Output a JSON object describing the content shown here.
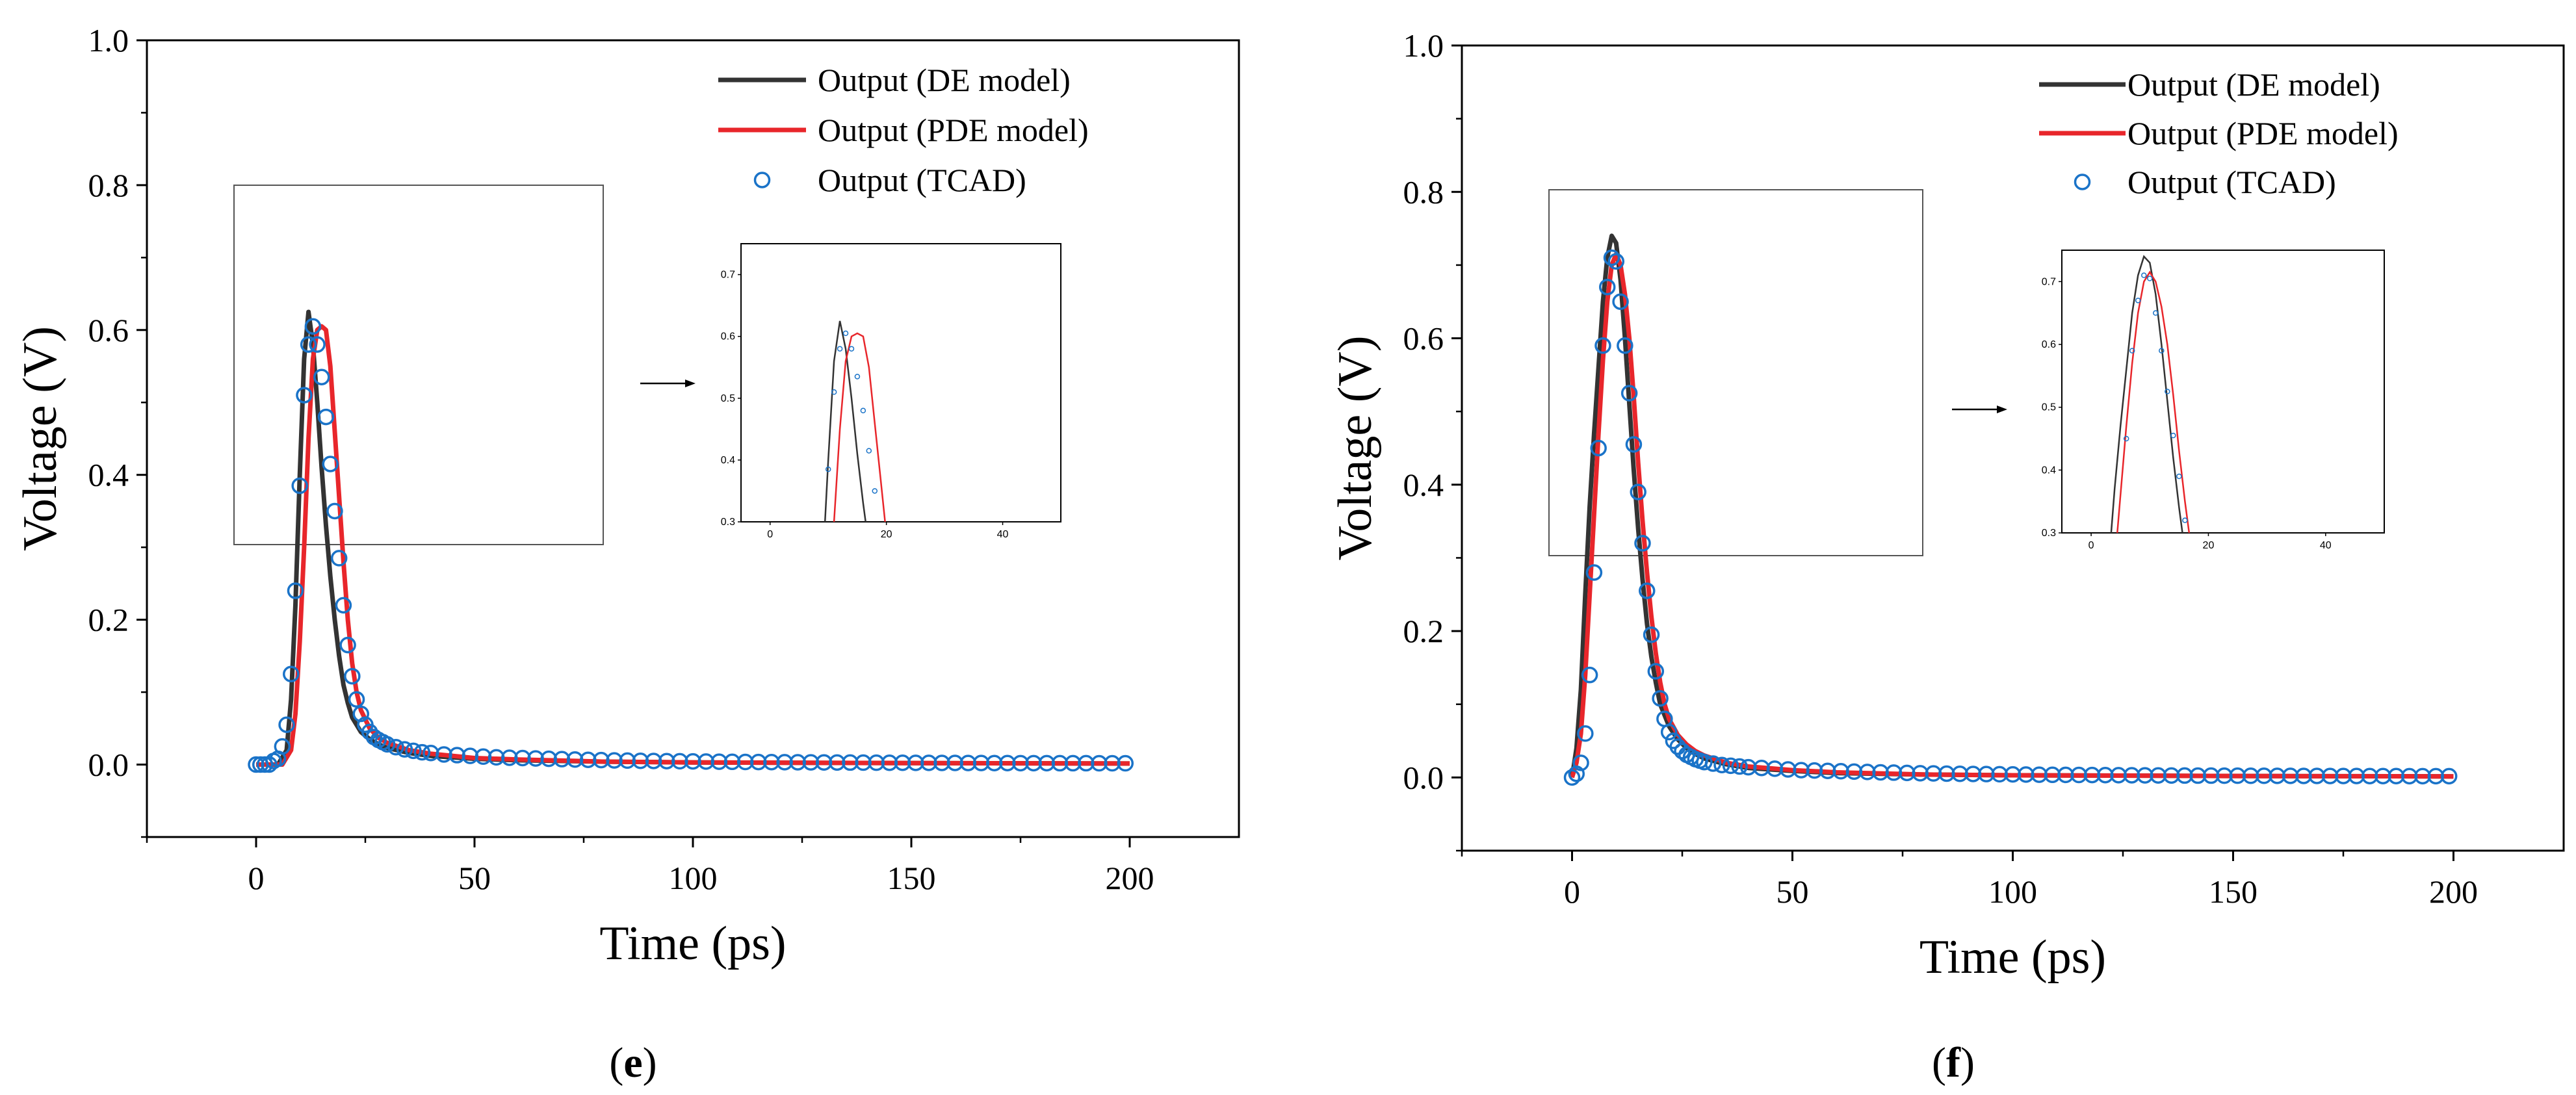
{
  "chart_data": [
    {
      "type": "line",
      "panel_label": "e",
      "xlabel": "Time (ps)",
      "ylabel": "Voltage (V)",
      "xlim": [
        -25,
        225
      ],
      "ylim": [
        -0.1,
        1.0
      ],
      "xticks": [
        0,
        50,
        100,
        150,
        200
      ],
      "yticks": [
        0.0,
        0.2,
        0.4,
        0.6,
        0.8,
        1.0
      ],
      "xtick_labels": [
        "0",
        "50",
        "100",
        "150",
        "200"
      ],
      "ytick_labels": [
        "0.0",
        "0.2",
        "0.4",
        "0.6",
        "0.8",
        "1.0"
      ],
      "legend_position": "top-right",
      "series": [
        {
          "name": "Output (DE model)",
          "color": "#333333",
          "kind": "line",
          "x": [
            0,
            5,
            7,
            8,
            9,
            10,
            11,
            12,
            13,
            14,
            15,
            16,
            17,
            18,
            19,
            20,
            21,
            22,
            24,
            26,
            28,
            30,
            35,
            40,
            50,
            60,
            80,
            100,
            150,
            200
          ],
          "y": [
            0.0,
            0.0,
            0.02,
            0.09,
            0.22,
            0.4,
            0.56,
            0.625,
            0.58,
            0.5,
            0.41,
            0.33,
            0.26,
            0.2,
            0.15,
            0.11,
            0.085,
            0.065,
            0.045,
            0.035,
            0.028,
            0.023,
            0.016,
            0.012,
            0.008,
            0.006,
            0.004,
            0.003,
            0.002,
            0.0015
          ]
        },
        {
          "name": "Output (PDE model)",
          "color": "#e8262b",
          "kind": "line",
          "x": [
            0,
            6,
            8,
            9,
            10,
            11,
            12,
            13,
            14,
            15,
            16,
            17,
            18,
            19,
            20,
            21,
            22,
            23,
            24,
            26,
            28,
            30,
            35,
            40,
            50,
            60,
            80,
            100,
            150,
            200
          ],
          "y": [
            0.0,
            0.0,
            0.02,
            0.07,
            0.17,
            0.3,
            0.45,
            0.56,
            0.6,
            0.605,
            0.6,
            0.55,
            0.46,
            0.37,
            0.28,
            0.2,
            0.14,
            0.1,
            0.075,
            0.05,
            0.037,
            0.03,
            0.02,
            0.015,
            0.009,
            0.007,
            0.004,
            0.003,
            0.002,
            0.0015
          ]
        },
        {
          "name": "Output (TCAD)",
          "color": "#1a73c8",
          "kind": "markers",
          "x": [
            0,
            1,
            2,
            3,
            4,
            5,
            6,
            7,
            8,
            9,
            10,
            11,
            12,
            13,
            14,
            15,
            16,
            17,
            18,
            19,
            20,
            21,
            22,
            23,
            24,
            25,
            26,
            27,
            28,
            29,
            30,
            32,
            34,
            36,
            38,
            40,
            43,
            46,
            49,
            52,
            55,
            58,
            61,
            64,
            67,
            70,
            73,
            76,
            79,
            82,
            85,
            88,
            91,
            94,
            97,
            100,
            103,
            106,
            109,
            112,
            115,
            118,
            121,
            124,
            127,
            130,
            133,
            136,
            139,
            142,
            145,
            148,
            151,
            154,
            157,
            160,
            163,
            166,
            169,
            172,
            175,
            178,
            181,
            184,
            187,
            190,
            193,
            196,
            199
          ],
          "y": [
            0.0,
            0.0,
            0.0,
            0.0,
            0.005,
            0.008,
            0.025,
            0.055,
            0.125,
            0.24,
            0.385,
            0.51,
            0.58,
            0.605,
            0.58,
            0.535,
            0.48,
            0.415,
            0.35,
            0.285,
            0.22,
            0.165,
            0.122,
            0.09,
            0.07,
            0.055,
            0.045,
            0.038,
            0.034,
            0.031,
            0.028,
            0.024,
            0.021,
            0.019,
            0.017,
            0.016,
            0.014,
            0.013,
            0.012,
            0.011,
            0.01,
            0.0095,
            0.009,
            0.0085,
            0.008,
            0.0075,
            0.007,
            0.0066,
            0.0062,
            0.0058,
            0.0055,
            0.0052,
            0.005,
            0.0048,
            0.0046,
            0.0044,
            0.0042,
            0.004,
            0.0038,
            0.0036,
            0.0035,
            0.0034,
            0.0033,
            0.0032,
            0.0031,
            0.003,
            0.0029,
            0.0028,
            0.0027,
            0.0026,
            0.0025,
            0.0025,
            0.0024,
            0.0024,
            0.0023,
            0.0023,
            0.0022,
            0.0022,
            0.0021,
            0.0021,
            0.002,
            0.002,
            0.002,
            0.0019,
            0.0019,
            0.0019,
            0.0018,
            0.0018,
            0.0018
          ]
        }
      ],
      "zoom_box": {
        "x_range": [
          -4,
          80
        ],
        "y_range": [
          0.3,
          0.8
        ]
      },
      "inset": {
        "xlim": [
          -5,
          50
        ],
        "ylim": [
          0.3,
          0.75
        ],
        "xticks": [
          0,
          20,
          40
        ],
        "yticks": [
          0.3,
          0.4,
          0.5,
          0.6,
          0.7
        ],
        "xtick_labels": [
          "0",
          "20",
          "40"
        ],
        "ytick_labels": [
          "0.3",
          "0.4",
          "0.5",
          "0.6",
          "0.7"
        ]
      }
    },
    {
      "type": "line",
      "panel_label": "f",
      "xlabel": "Time (ps)",
      "ylabel": "Voltage (V)",
      "xlim": [
        -25,
        225
      ],
      "ylim": [
        -0.1,
        1.0
      ],
      "xticks": [
        0,
        50,
        100,
        150,
        200
      ],
      "yticks": [
        0.0,
        0.2,
        0.4,
        0.6,
        0.8,
        1.0
      ],
      "xtick_labels": [
        "0",
        "50",
        "100",
        "150",
        "200"
      ],
      "ytick_labels": [
        "0.0",
        "0.2",
        "0.4",
        "0.6",
        "0.8",
        "1.0"
      ],
      "legend_position": "top-right",
      "series": [
        {
          "name": "Output (DE model)",
          "color": "#333333",
          "kind": "line",
          "x": [
            0,
            1,
            2,
            3,
            4,
            5,
            6,
            7,
            8,
            9,
            10,
            11,
            12,
            13,
            14,
            15,
            16,
            17,
            18,
            19,
            20,
            22,
            24,
            26,
            28,
            30,
            35,
            40,
            50,
            60,
            80,
            100,
            150,
            200
          ],
          "y": [
            0.0,
            0.04,
            0.12,
            0.25,
            0.37,
            0.47,
            0.56,
            0.65,
            0.71,
            0.74,
            0.73,
            0.68,
            0.6,
            0.51,
            0.42,
            0.34,
            0.27,
            0.21,
            0.165,
            0.13,
            0.1,
            0.07,
            0.052,
            0.04,
            0.032,
            0.026,
            0.018,
            0.013,
            0.009,
            0.006,
            0.004,
            0.003,
            0.002,
            0.0015
          ]
        },
        {
          "name": "Output (PDE model)",
          "color": "#e8262b",
          "kind": "line",
          "x": [
            0,
            1,
            2,
            3,
            4,
            5,
            6,
            7,
            8,
            9,
            10,
            11,
            12,
            13,
            14,
            15,
            16,
            17,
            18,
            19,
            20,
            21,
            22,
            24,
            26,
            28,
            30,
            35,
            40,
            50,
            60,
            80,
            100,
            150,
            200
          ],
          "y": [
            0.0,
            0.02,
            0.06,
            0.14,
            0.25,
            0.36,
            0.47,
            0.57,
            0.65,
            0.7,
            0.715,
            0.7,
            0.66,
            0.6,
            0.52,
            0.43,
            0.35,
            0.28,
            0.22,
            0.17,
            0.13,
            0.1,
            0.08,
            0.058,
            0.045,
            0.036,
            0.03,
            0.02,
            0.015,
            0.01,
            0.007,
            0.004,
            0.003,
            0.002,
            0.0015
          ]
        },
        {
          "name": "Output (TCAD)",
          "color": "#1a73c8",
          "kind": "markers",
          "x": [
            0,
            1,
            2,
            3,
            4,
            5,
            6,
            7,
            8,
            9,
            10,
            11,
            12,
            13,
            14,
            15,
            16,
            17,
            18,
            19,
            20,
            21,
            22,
            23,
            24,
            25,
            26,
            27,
            28,
            29,
            30,
            32,
            34,
            36,
            38,
            40,
            43,
            46,
            49,
            52,
            55,
            58,
            61,
            64,
            67,
            70,
            73,
            76,
            79,
            82,
            85,
            88,
            91,
            94,
            97,
            100,
            103,
            106,
            109,
            112,
            115,
            118,
            121,
            124,
            127,
            130,
            133,
            136,
            139,
            142,
            145,
            148,
            151,
            154,
            157,
            160,
            163,
            166,
            169,
            172,
            175,
            178,
            181,
            184,
            187,
            190,
            193,
            196,
            199
          ],
          "y": [
            0.0,
            0.005,
            0.02,
            0.06,
            0.14,
            0.28,
            0.45,
            0.59,
            0.67,
            0.71,
            0.705,
            0.65,
            0.59,
            0.525,
            0.455,
            0.39,
            0.32,
            0.255,
            0.195,
            0.145,
            0.108,
            0.08,
            0.062,
            0.05,
            0.042,
            0.036,
            0.031,
            0.028,
            0.025,
            0.023,
            0.021,
            0.019,
            0.017,
            0.016,
            0.015,
            0.014,
            0.013,
            0.012,
            0.011,
            0.01,
            0.0095,
            0.009,
            0.0085,
            0.008,
            0.0075,
            0.007,
            0.0066,
            0.0062,
            0.0058,
            0.0055,
            0.0052,
            0.005,
            0.0048,
            0.0046,
            0.0044,
            0.0042,
            0.004,
            0.0038,
            0.0036,
            0.0035,
            0.0034,
            0.0033,
            0.0032,
            0.0031,
            0.003,
            0.0029,
            0.0028,
            0.0027,
            0.0026,
            0.0025,
            0.0025,
            0.0024,
            0.0024,
            0.0023,
            0.0023,
            0.0022,
            0.0022,
            0.0021,
            0.0021,
            0.002,
            0.002,
            0.002,
            0.0019,
            0.0019,
            0.0019,
            0.0018,
            0.0018,
            0.0018,
            0.0018
          ]
        }
      ],
      "zoom_box": {
        "x_range": [
          -5,
          80
        ],
        "y_range": [
          0.3,
          0.8
        ]
      },
      "inset": {
        "xlim": [
          -5,
          50
        ],
        "ylim": [
          0.3,
          0.75
        ],
        "xticks": [
          0,
          20,
          40
        ],
        "yticks": [
          0.3,
          0.4,
          0.5,
          0.6,
          0.7
        ],
        "xtick_labels": [
          "0",
          "20",
          "40"
        ],
        "ytick_labels": [
          "0.3",
          "0.4",
          "0.5",
          "0.6",
          "0.7"
        ]
      }
    }
  ]
}
